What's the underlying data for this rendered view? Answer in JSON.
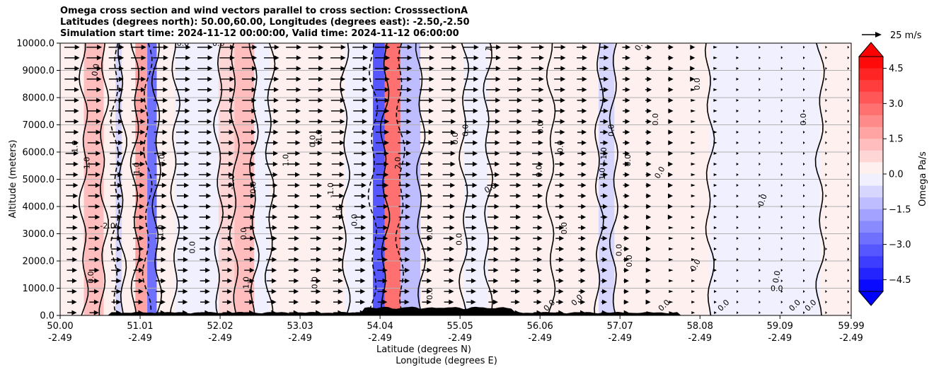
{
  "chart_data": {
    "type": "heatmap",
    "title_lines": [
      "Omega cross section and wind vectors parallel to cross section: CrosssectionA",
      "Latitudes (degrees north): 50.00,60.00, Longitudes (degrees east): -2.50,-2.50",
      "Simulation start time: 2024-11-12 00:00:00, Valid time: 2024-11-12 06:00:00"
    ],
    "xlabel_lat": "Latitude (degrees N)",
    "xlabel_lon": "Longitude (degrees E)",
    "ylabel": "Altitude (meters)",
    "x_ticks": [
      {
        "lat": "50.00",
        "lon": "-2.49",
        "v": 50.0
      },
      {
        "lat": "51.01",
        "lon": "-2.49",
        "v": 51.01
      },
      {
        "lat": "52.02",
        "lon": "-2.49",
        "v": 52.02
      },
      {
        "lat": "53.03",
        "lon": "-2.49",
        "v": 53.03
      },
      {
        "lat": "54.04",
        "lon": "-2.49",
        "v": 54.04
      },
      {
        "lat": "55.05",
        "lon": "-2.49",
        "v": 55.05
      },
      {
        "lat": "56.06",
        "lon": "-2.49",
        "v": 56.06
      },
      {
        "lat": "57.07",
        "lon": "-2.49",
        "v": 57.07
      },
      {
        "lat": "58.08",
        "lon": "-2.49",
        "v": 58.08
      },
      {
        "lat": "59.09",
        "lon": "-2.49",
        "v": 59.09
      },
      {
        "lat": "59.99",
        "lon": "-2.49",
        "v": 59.99
      }
    ],
    "xlim": [
      50.0,
      59.99
    ],
    "y_ticks": [
      "0.0",
      "1000.0",
      "2000.0",
      "3000.0",
      "4000.0",
      "5000.0",
      "6000.0",
      "7000.0",
      "8000.0",
      "9000.0",
      "10000.0"
    ],
    "ylim": [
      0,
      10000
    ],
    "grid": "horizontal",
    "colorbar": {
      "label": "Omega Pa/s",
      "ticks": [
        "4.5",
        "3.0",
        "1.5",
        "0.0",
        "−1.5",
        "−3.0",
        "−4.5"
      ],
      "range": [
        -5.0,
        5.0
      ],
      "colors_high": "#ff0000",
      "colors_low": "#0000ff"
    },
    "quiver_key": "25 m/s",
    "omega_bands": [
      {
        "x0": 50.0,
        "x1": 50.3,
        "v": 0.3
      },
      {
        "x0": 50.3,
        "x1": 50.55,
        "v": 1.5
      },
      {
        "x0": 50.55,
        "x1": 50.7,
        "v": 0.5
      },
      {
        "x0": 50.7,
        "x1": 50.78,
        "v": -1.0
      },
      {
        "x0": 50.78,
        "x1": 50.95,
        "v": 0.3
      },
      {
        "x0": 50.95,
        "x1": 51.1,
        "v": 2.0
      },
      {
        "x0": 51.1,
        "x1": 51.22,
        "v": -3.0
      },
      {
        "x0": 51.22,
        "x1": 51.45,
        "v": 0.4
      },
      {
        "x0": 51.45,
        "x1": 52.0,
        "v": -0.3
      },
      {
        "x0": 52.0,
        "x1": 52.2,
        "v": 0.8
      },
      {
        "x0": 52.2,
        "x1": 52.45,
        "v": 1.2
      },
      {
        "x0": 52.45,
        "x1": 52.65,
        "v": -0.4
      },
      {
        "x0": 52.65,
        "x1": 53.6,
        "v": 0.5
      },
      {
        "x0": 53.6,
        "x1": 53.95,
        "v": -0.4
      },
      {
        "x0": 53.95,
        "x1": 54.1,
        "v": -3.5
      },
      {
        "x0": 54.1,
        "x1": 54.3,
        "v": 3.0
      },
      {
        "x0": 54.3,
        "x1": 54.55,
        "v": -1.5
      },
      {
        "x0": 54.55,
        "x1": 55.1,
        "v": 0.5
      },
      {
        "x0": 55.1,
        "x1": 55.4,
        "v": -0.4
      },
      {
        "x0": 55.4,
        "x1": 56.2,
        "v": 0.3
      },
      {
        "x0": 56.2,
        "x1": 56.8,
        "v": 0.2
      },
      {
        "x0": 56.8,
        "x1": 57.0,
        "v": -0.6
      },
      {
        "x0": 57.0,
        "x1": 58.2,
        "v": 0.15
      },
      {
        "x0": 58.2,
        "x1": 59.6,
        "v": -0.15
      },
      {
        "x0": 59.6,
        "x1": 59.99,
        "v": 0.15
      }
    ],
    "contour_labels": [
      {
        "text": "0.0",
        "x": 50.48,
        "y": 9000,
        "rot": -80
      },
      {
        "text": "1.0",
        "x": 50.22,
        "y": 6200,
        "rot": -90
      },
      {
        "text": "1.0",
        "x": 50.37,
        "y": 5600,
        "rot": -90
      },
      {
        "text": "-2.0",
        "x": 50.6,
        "y": 3200,
        "rot": 0
      },
      {
        "text": "0.0",
        "x": 50.42,
        "y": 1400,
        "rot": -90
      },
      {
        "text": "1.0",
        "x": 51.0,
        "y": 5400,
        "rot": -90
      },
      {
        "text": "0.0",
        "x": 51.32,
        "y": 5700,
        "rot": -90
      },
      {
        "text": "1.0",
        "x": 51.3,
        "y": 3100,
        "rot": -90
      },
      {
        "text": "0.0",
        "x": 51.55,
        "y": 9900,
        "rot": 0
      },
      {
        "text": "0.0",
        "x": 52.0,
        "y": 9900,
        "rot": 0
      },
      {
        "text": "-2.0",
        "x": 52.2,
        "y": 4900,
        "rot": -90
      },
      {
        "text": "0.0",
        "x": 52.47,
        "y": 4700,
        "rot": -90
      },
      {
        "text": "1.0",
        "x": 52.38,
        "y": 1200,
        "rot": -90
      },
      {
        "text": "0.0",
        "x": 53.22,
        "y": 6400,
        "rot": -90
      },
      {
        "text": "1.0",
        "x": 53.3,
        "y": 6600,
        "rot": -90
      },
      {
        "text": "1.0",
        "x": 52.88,
        "y": 5700,
        "rot": -90
      },
      {
        "text": "-1.0",
        "x": 53.45,
        "y": 4600,
        "rot": -90
      },
      {
        "text": "1.0",
        "x": 53.55,
        "y": 3800,
        "rot": -90
      },
      {
        "text": "0.0",
        "x": 53.75,
        "y": 3500,
        "rot": -90
      },
      {
        "text": "2.0",
        "x": 54.3,
        "y": 5600,
        "rot": -90
      },
      {
        "text": "0.0",
        "x": 55.02,
        "y": 6500,
        "rot": -90
      },
      {
        "text": "0.0",
        "x": 55.15,
        "y": 6800,
        "rot": -90
      },
      {
        "text": "1.0",
        "x": 55.45,
        "y": 9900,
        "rot": -80
      },
      {
        "text": "0.0",
        "x": 55.45,
        "y": 4600,
        "rot": -30
      },
      {
        "text": "0.0",
        "x": 56.1,
        "y": 6900,
        "rot": -90
      },
      {
        "text": "0.0",
        "x": 56.35,
        "y": 6200,
        "rot": -90
      },
      {
        "text": "0.0",
        "x": 56.08,
        "y": 5300,
        "rot": -90
      },
      {
        "text": "1.0",
        "x": 56.88,
        "y": 5200,
        "rot": -90
      },
      {
        "text": "-1.0",
        "x": 56.9,
        "y": 5900,
        "rot": -90
      },
      {
        "text": "0.0",
        "x": 56.99,
        "y": 6800,
        "rot": -90
      },
      {
        "text": "0.0",
        "x": 57.2,
        "y": 5700,
        "rot": -90
      },
      {
        "text": "0.0",
        "x": 57.35,
        "y": 9900,
        "rot": -60
      },
      {
        "text": "0.0",
        "x": 57.6,
        "y": 5200,
        "rot": -60
      },
      {
        "text": "0.0",
        "x": 57.55,
        "y": 7200,
        "rot": -90
      },
      {
        "text": "0.0",
        "x": 58.08,
        "y": 8500,
        "rot": -90
      },
      {
        "text": "0.0",
        "x": 58.05,
        "y": 1800,
        "rot": -60
      },
      {
        "text": "0.0",
        "x": 58.9,
        "y": 4200,
        "rot": -70
      },
      {
        "text": "0.0",
        "x": 59.08,
        "y": 1400,
        "rot": -80
      },
      {
        "text": "0.0",
        "x": 59.05,
        "y": 900,
        "rot": 0
      },
      {
        "text": "0.0",
        "x": 59.42,
        "y": 7200,
        "rot": -90
      },
      {
        "text": "0.0",
        "x": 56.4,
        "y": 3200,
        "rot": -90
      },
      {
        "text": "0.0",
        "x": 57.09,
        "y": 2400,
        "rot": -90
      },
      {
        "text": "0.0",
        "x": 57.22,
        "y": 2000,
        "rot": -90
      },
      {
        "text": "0.0",
        "x": 55.07,
        "y": 2800,
        "rot": -90
      },
      {
        "text": "0.0",
        "x": 54.7,
        "y": 3000,
        "rot": -90
      },
      {
        "text": "0.0",
        "x": 52.35,
        "y": 3000,
        "rot": -90
      },
      {
        "text": "0.0",
        "x": 51.7,
        "y": 2500,
        "rot": -90
      },
      {
        "text": "0.0",
        "x": 53.25,
        "y": 1200,
        "rot": -90
      },
      {
        "text": "0.0",
        "x": 54.7,
        "y": 800,
        "rot": -90
      },
      {
        "text": "0.0",
        "x": 56.2,
        "y": 300,
        "rot": -45
      },
      {
        "text": "0.0",
        "x": 56.55,
        "y": 500,
        "rot": -45
      },
      {
        "text": "0.0",
        "x": 57.65,
        "y": 300,
        "rot": -45
      },
      {
        "text": "0.0",
        "x": 58.4,
        "y": 300,
        "rot": -45
      },
      {
        "text": "0.0",
        "x": 59.3,
        "y": 300,
        "rot": -45
      },
      {
        "text": "0.0",
        "x": 59.5,
        "y": 300,
        "rot": -45
      }
    ]
  }
}
